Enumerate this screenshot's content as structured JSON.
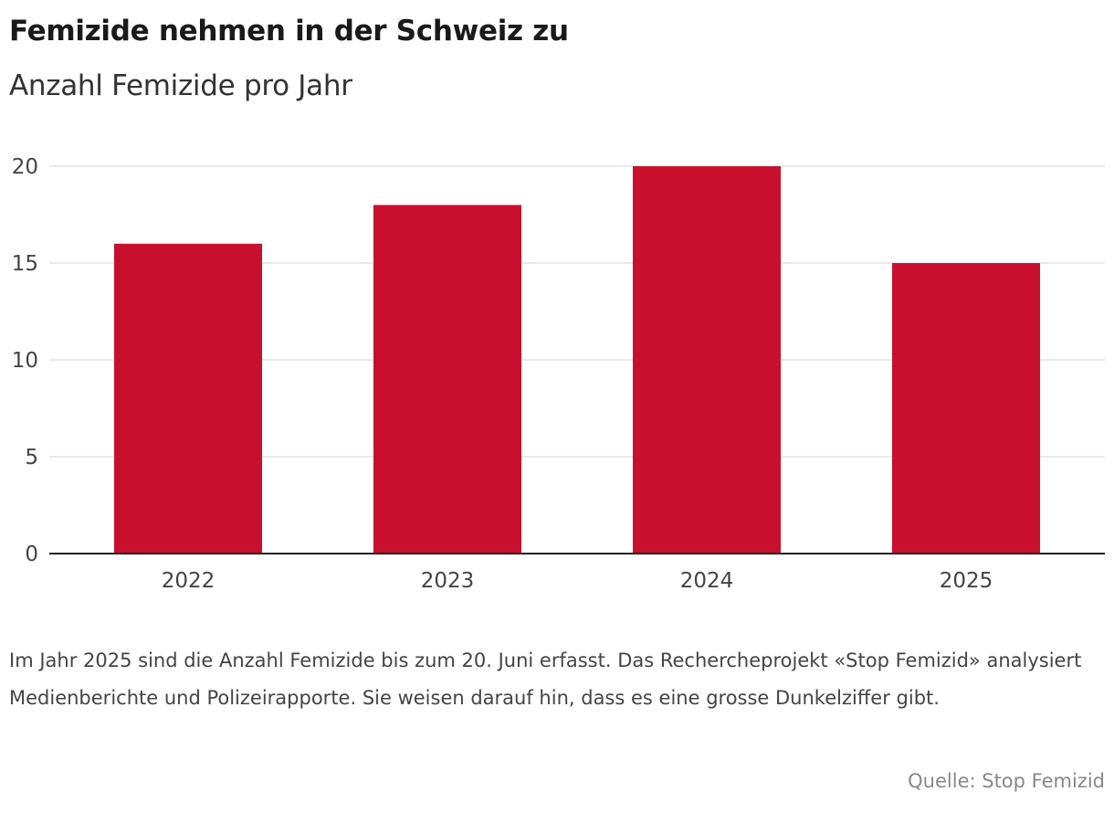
{
  "chart_data": {
    "type": "bar",
    "title": "Femizide nehmen in der Schweiz zu",
    "subtitle": "Anzahl Femizide pro Jahr",
    "categories": [
      "2022",
      "2023",
      "2024",
      "2025"
    ],
    "values": [
      16,
      18,
      20,
      15
    ],
    "ylim": [
      0,
      20
    ],
    "yticks": [
      0,
      5,
      10,
      15,
      20
    ],
    "xlabel": "",
    "ylabel": "",
    "grid": true,
    "bar_color": "#c8102e",
    "note": "Im Jahr 2025 sind die Anzahl Femizide bis zum 20. Juni erfasst. Das Rechercheprojekt «Stop Femizid» analysiert Medienberichte und Polizeirapporte. Sie weisen darauf hin, dass es eine grosse Dunkelziffer gibt.",
    "source": "Quelle: Stop Femizid"
  }
}
